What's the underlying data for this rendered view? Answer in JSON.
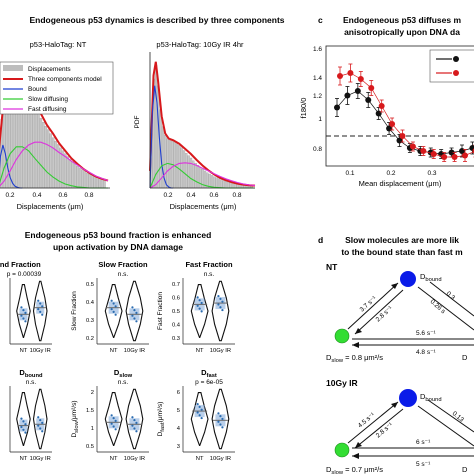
{
  "panel_labels": {
    "c": "c",
    "d": "d"
  },
  "headings": {
    "a": "Endogeneous p53 dynamics is described by three components",
    "c1": "Endogeneous p53 diffuses m",
    "c2": "anisotropically upon DNA da",
    "b1": "Endogeneous p53 bound fraction is enhanced",
    "b2": "upon activation by DNA damage",
    "d1": "Slow molecules are more lik",
    "d2": "to the bound state than fast m"
  },
  "hist_left": {
    "title": "p53-HaloTag: NT",
    "xlabel": "Displacements (μm)",
    "ticks": [
      "0.2",
      "0.4",
      "0.6",
      "0.8"
    ]
  },
  "hist_right": {
    "title": "p53-HaloTag: 10Gy IR 4hr",
    "xlabel": "Displacements (μm)",
    "ylabel": "PDF",
    "ticks": [
      "0.2",
      "0.4",
      "0.6",
      "0.8"
    ]
  },
  "legend": {
    "items": [
      {
        "label": "Displacements",
        "color": "#bdbdbd"
      },
      {
        "label": "Three components model",
        "color": "#d7191c"
      },
      {
        "label": "Bound",
        "color": "#1f3fd1"
      },
      {
        "label": "Slow diffusing",
        "color": "#33cc33"
      },
      {
        "label": "Fast diffusing",
        "color": "#dd33dd"
      }
    ]
  },
  "chart_c": {
    "ylabel": "f180/0",
    "xlabel": "Mean displacement (μm)",
    "yticks": [
      "1.6",
      "1.4",
      "1.2",
      "1",
      "0.8"
    ],
    "xticks": [
      "0.1",
      "0.2",
      "0.3"
    ]
  },
  "violins": {
    "groups": [
      "NT",
      "10Gy IR"
    ],
    "panels": [
      {
        "title": "Bound Fraction",
        "title_partial": "und Fraction",
        "pval": "p = 0.00039",
        "ylabel": "",
        "yticks": [
          "0.5",
          "0.4",
          "0.3",
          "0.2"
        ]
      },
      {
        "title": "Slow Fraction",
        "pval": "n.s.",
        "ylabel": "Slow Fraction",
        "yticks": [
          "0.5",
          "0.4",
          "0.3",
          "0.2"
        ]
      },
      {
        "title": "Fast Fraction",
        "pval": "n.s.",
        "ylabel": "Fast Fraction",
        "yticks": [
          "0.7",
          "0.6",
          "0.5",
          "0.4",
          "0.3"
        ]
      },
      {
        "title": "D",
        "sub": "bound",
        "pval": "n.s.",
        "ylabel": "",
        "yticks": [
          "0.1",
          "0.05"
        ]
      },
      {
        "title": "D",
        "sub": "slow",
        "pval": "n.s.",
        "ylabel": "D",
        "ylabel_sub": "slow",
        "ylabel_unit": "(μm²/s)",
        "yticks": [
          "2",
          "1.5",
          "1",
          "0.5"
        ]
      },
      {
        "title": "D",
        "sub": "fast",
        "pval": "p = 6e-05",
        "ylabel": "D",
        "ylabel_sub": "fast",
        "ylabel_unit": "(μm²/s)",
        "yticks": [
          "6",
          "5",
          "4",
          "3"
        ]
      }
    ]
  },
  "kinetics": {
    "nt": {
      "label": "NT",
      "d_bound": "D",
      "d_bound_sub": "bound",
      "d_slow": "D",
      "d_slow_sub": "slow",
      "d_slow_val": " = 0.8 μm²/s",
      "d_fast": "D",
      "k_up": "3.7 s⁻¹",
      "k_down": "2.8 s⁻¹",
      "k_right_up": "0.3",
      "k_right_down": "0.26 s",
      "k_sf": "5.6 s⁻¹",
      "k_fs": "4.8 s⁻¹"
    },
    "ir": {
      "label": "10Gy IR",
      "d_bound": "D",
      "d_bound_sub": "bound",
      "d_slow": "D",
      "d_slow_sub": "slow",
      "d_slow_val": " = 0.7 μm²/s",
      "d_fast": "D",
      "k_up": "4.5 s⁻¹",
      "k_down": "2.8 s⁻¹",
      "k_right_down": "0.13",
      "k_sf": "6 s⁻¹",
      "k_fs": "5 s⁻¹"
    }
  },
  "chart_data": [
    {
      "type": "bar",
      "title": "p53-HaloTag: NT",
      "xlabel": "Displacements (μm)",
      "xlim": [
        0,
        0.9
      ],
      "series": [
        {
          "name": "Displacements",
          "x": [
            0.02,
            0.04,
            0.06,
            0.08,
            0.1,
            0.12,
            0.14,
            0.16,
            0.18,
            0.2,
            0.22,
            0.24,
            0.26,
            0.28,
            0.3,
            0.32,
            0.34,
            0.36,
            0.38,
            0.4,
            0.42,
            0.44,
            0.46,
            0.48,
            0.5,
            0.52,
            0.54,
            0.56,
            0.58,
            0.6,
            0.62,
            0.64,
            0.66,
            0.68,
            0.7,
            0.72,
            0.74,
            0.76,
            0.78,
            0.8,
            0.82,
            0.84,
            0.86,
            0.88
          ],
          "values": [
            0.8,
            1.2,
            1.6,
            1.9,
            2.0,
            2.0,
            1.9,
            1.85,
            1.8,
            1.75,
            1.7,
            1.62,
            1.55,
            1.5,
            1.42,
            1.35,
            1.3,
            1.22,
            1.15,
            1.08,
            1.02,
            0.95,
            0.88,
            0.82,
            0.76,
            0.7,
            0.65,
            0.6,
            0.55,
            0.5,
            0.46,
            0.42,
            0.38,
            0.35,
            0.32,
            0.29,
            0.26,
            0.24,
            0.22,
            0.2,
            0.18,
            0.16,
            0.15,
            0.14
          ]
        },
        {
          "name": "Three components model",
          "x": [
            0,
            0.05,
            0.1,
            0.15,
            0.2,
            0.25,
            0.3,
            0.35,
            0.4,
            0.45,
            0.5,
            0.55,
            0.6,
            0.65,
            0.7,
            0.75,
            0.8,
            0.85,
            0.9
          ],
          "values": [
            0.5,
            1.6,
            2.05,
            1.95,
            1.8,
            1.65,
            1.45,
            1.3,
            1.1,
            0.95,
            0.78,
            0.65,
            0.52,
            0.42,
            0.33,
            0.26,
            0.2,
            0.16,
            0.13
          ]
        },
        {
          "name": "Bound",
          "x": [
            0,
            0.02,
            0.04,
            0.06,
            0.08,
            0.1,
            0.12,
            0.14,
            0.16,
            0.18,
            0.2
          ],
          "values": [
            0.0,
            0.55,
            0.75,
            0.6,
            0.35,
            0.18,
            0.08,
            0.03,
            0.01,
            0.0,
            0.0
          ]
        },
        {
          "name": "Slow diffusing",
          "x": [
            0,
            0.05,
            0.1,
            0.15,
            0.2,
            0.25,
            0.3,
            0.35,
            0.4,
            0.45,
            0.5,
            0.55,
            0.6,
            0.65,
            0.7,
            0.75,
            0.8,
            0.85,
            0.9
          ],
          "values": [
            0.0,
            0.35,
            0.6,
            0.72,
            0.72,
            0.65,
            0.52,
            0.4,
            0.28,
            0.19,
            0.12,
            0.07,
            0.04,
            0.02,
            0.01,
            0.0,
            0.0,
            0.0,
            0.0
          ]
        },
        {
          "name": "Fast diffusing",
          "x": [
            0,
            0.05,
            0.1,
            0.15,
            0.2,
            0.25,
            0.3,
            0.35,
            0.4,
            0.45,
            0.5,
            0.55,
            0.6,
            0.65,
            0.7,
            0.75,
            0.8,
            0.85,
            0.9
          ],
          "values": [
            0.0,
            0.12,
            0.3,
            0.5,
            0.65,
            0.75,
            0.8,
            0.8,
            0.76,
            0.7,
            0.62,
            0.55,
            0.47,
            0.4,
            0.33,
            0.27,
            0.21,
            0.17,
            0.13
          ]
        }
      ]
    },
    {
      "type": "bar",
      "title": "p53-HaloTag: 10Gy IR 4hr",
      "xlabel": "Displacements (μm)",
      "ylabel": "PDF",
      "xlim": [
        0,
        0.9
      ],
      "series": [
        {
          "name": "Displacements",
          "x": [
            0.02,
            0.04,
            0.06,
            0.08,
            0.1,
            0.12,
            0.14,
            0.16,
            0.18,
            0.2,
            0.22,
            0.24,
            0.26,
            0.28,
            0.3,
            0.32,
            0.34,
            0.36,
            0.38,
            0.4,
            0.42,
            0.44,
            0.46,
            0.48,
            0.5,
            0.52,
            0.54,
            0.56,
            0.58,
            0.6,
            0.62,
            0.64,
            0.66,
            0.68,
            0.7,
            0.72,
            0.74,
            0.76,
            0.78,
            0.8,
            0.82,
            0.84,
            0.86,
            0.88
          ],
          "values": [
            1.6,
            3.2,
            3.6,
            3.0,
            2.3,
            1.8,
            1.55,
            1.45,
            1.4,
            1.38,
            1.35,
            1.3,
            1.25,
            1.18,
            1.1,
            1.02,
            0.95,
            0.88,
            0.8,
            0.73,
            0.67,
            0.6,
            0.55,
            0.5,
            0.45,
            0.41,
            0.37,
            0.33,
            0.3,
            0.27,
            0.24,
            0.22,
            0.2,
            0.18,
            0.16,
            0.14,
            0.13,
            0.12,
            0.11,
            0.1,
            0.09,
            0.08,
            0.07,
            0.07
          ]
        },
        {
          "name": "Three components model",
          "x": [
            0,
            0.03,
            0.05,
            0.07,
            0.1,
            0.13,
            0.16,
            0.2,
            0.25,
            0.3,
            0.35,
            0.4,
            0.45,
            0.5,
            0.55,
            0.6,
            0.65,
            0.7,
            0.75,
            0.8,
            0.85,
            0.9
          ],
          "values": [
            0.5,
            3.3,
            3.7,
            3.1,
            2.1,
            1.6,
            1.45,
            1.4,
            1.3,
            1.15,
            1.0,
            0.82,
            0.66,
            0.52,
            0.4,
            0.3,
            0.23,
            0.17,
            0.13,
            0.1,
            0.08,
            0.07
          ]
        },
        {
          "name": "Bound",
          "x": [
            0,
            0.02,
            0.04,
            0.06,
            0.08,
            0.1,
            0.12,
            0.14,
            0.16,
            0.18,
            0.2
          ],
          "values": [
            0.0,
            2.2,
            3.0,
            2.5,
            1.5,
            0.7,
            0.3,
            0.1,
            0.03,
            0.0,
            0.0
          ]
        },
        {
          "name": "Slow diffusing",
          "x": [
            0,
            0.05,
            0.1,
            0.15,
            0.2,
            0.25,
            0.3,
            0.35,
            0.4,
            0.45,
            0.5,
            0.55,
            0.6,
            0.65,
            0.7,
            0.75,
            0.8,
            0.85,
            0.9
          ],
          "values": [
            0.0,
            0.4,
            0.65,
            0.72,
            0.68,
            0.56,
            0.42,
            0.28,
            0.18,
            0.1,
            0.05,
            0.02,
            0.01,
            0.0,
            0.0,
            0.0,
            0.0,
            0.0,
            0.0
          ]
        },
        {
          "name": "Fast diffusing",
          "x": [
            0,
            0.05,
            0.1,
            0.15,
            0.2,
            0.25,
            0.3,
            0.35,
            0.4,
            0.45,
            0.5,
            0.55,
            0.6,
            0.65,
            0.7,
            0.75,
            0.8,
            0.85,
            0.9
          ],
          "values": [
            0.0,
            0.1,
            0.3,
            0.5,
            0.64,
            0.72,
            0.74,
            0.72,
            0.66,
            0.58,
            0.5,
            0.42,
            0.34,
            0.27,
            0.21,
            0.16,
            0.12,
            0.09,
            0.07
          ]
        }
      ]
    },
    {
      "type": "scatter",
      "xlabel": "Mean displacement (μm)",
      "ylabel": "f180/0",
      "xlim": [
        0.02,
        0.38
      ],
      "ylim": [
        0.8,
        1.6
      ],
      "series": [
        {
          "name": "",
          "color": "#111111",
          "x": [
            0.05,
            0.075,
            0.1,
            0.125,
            0.15,
            0.175,
            0.2,
            0.225,
            0.25,
            0.275,
            0.3,
            0.325,
            0.35,
            0.375
          ],
          "values": [
            1.19,
            1.27,
            1.3,
            1.24,
            1.15,
            1.05,
            0.97,
            0.92,
            0.9,
            0.89,
            0.88,
            0.89,
            0.9,
            0.92
          ],
          "errors": [
            0.06,
            0.06,
            0.05,
            0.05,
            0.04,
            0.04,
            0.04,
            0.03,
            0.03,
            0.03,
            0.03,
            0.03,
            0.04,
            0.04
          ]
        },
        {
          "name": "",
          "color": "#d7191c",
          "x": [
            0.05,
            0.075,
            0.1,
            0.125,
            0.15,
            0.175,
            0.2,
            0.225,
            0.25,
            0.275,
            0.3,
            0.325,
            0.35,
            0.375
          ],
          "values": [
            1.4,
            1.42,
            1.38,
            1.32,
            1.2,
            1.08,
            1.0,
            0.93,
            0.9,
            0.88,
            0.86,
            0.86,
            0.87,
            0.9
          ],
          "errors": [
            0.06,
            0.06,
            0.05,
            0.05,
            0.04,
            0.04,
            0.04,
            0.03,
            0.03,
            0.03,
            0.03,
            0.03,
            0.04,
            0.04
          ]
        }
      ],
      "reference_line": 1
    }
  ]
}
